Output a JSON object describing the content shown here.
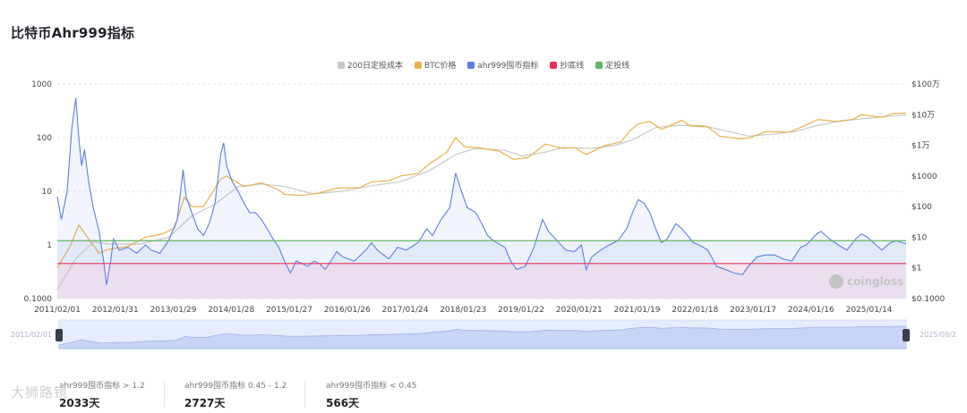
{
  "page": {
    "title": "比特币Ahr999指标"
  },
  "watermark": {
    "logo_text": "coingloss",
    "corner_text": "大狮路镜"
  },
  "legend": [
    {
      "label": "200日定投成本",
      "color": "#c8c8c8"
    },
    {
      "label": "BTC价格",
      "color": "#e8b14a"
    },
    {
      "label": "ahr999囤币指标",
      "color": "#5b7fe0"
    },
    {
      "label": "抄底线",
      "color": "#e8305a"
    },
    {
      "label": "定投线",
      "color": "#5fb85f"
    }
  ],
  "navigator": {
    "start_label": "2011/02/01",
    "end_label": "2025/09/2"
  },
  "stats": [
    {
      "label": "ahr999囤币指标 > 1.2",
      "value": "2033天"
    },
    {
      "label": "ahr999囤币指标 0.45 - 1.2",
      "value": "2727天"
    },
    {
      "label": "ahr999囤币指标 < 0.45",
      "value": "566天"
    }
  ],
  "chart_data": {
    "type": "line",
    "title": "比特币Ahr999指标",
    "x_ticks": [
      "2011/02/01",
      "2012/01/31",
      "2013/01/29",
      "2014/01/28",
      "2015/01/27",
      "2016/01/26",
      "2017/01/24",
      "2018/01/23",
      "2019/01/22",
      "2020/01/21",
      "2021/01/19",
      "2022/01/18",
      "2023/01/17",
      "2024/01/16",
      "2025/01/14"
    ],
    "y_left_ticks": [
      "1000",
      "100",
      "10",
      "1",
      "0.1000"
    ],
    "y_left_scale": "log",
    "y_left_range": [
      0.1,
      1000
    ],
    "y_right_ticks": [
      "$100万",
      "$10万",
      "$1万",
      "$1000",
      "$100",
      "$10",
      "$1",
      "$0.1000"
    ],
    "y_right_scale": "log",
    "y_right_range": [
      0.1,
      1000000
    ],
    "grid": true,
    "legend_position": "top-center",
    "lines": {
      "buy_bottom": 0.45,
      "dca": 1.2
    },
    "x_range": [
      2011.08,
      2025.72
    ],
    "series": [
      {
        "name": "ahr999囤币指标",
        "axis": "left",
        "color": "#5b7fe0",
        "points": [
          [
            2011.08,
            8
          ],
          [
            2011.15,
            3
          ],
          [
            2011.25,
            10
          ],
          [
            2011.33,
            150
          ],
          [
            2011.4,
            550
          ],
          [
            2011.45,
            100
          ],
          [
            2011.5,
            30
          ],
          [
            2011.55,
            60
          ],
          [
            2011.62,
            15
          ],
          [
            2011.7,
            5
          ],
          [
            2011.8,
            1.8
          ],
          [
            2011.88,
            0.5
          ],
          [
            2011.93,
            0.18
          ],
          [
            2012.0,
            0.5
          ],
          [
            2012.05,
            1.3
          ],
          [
            2012.15,
            0.8
          ],
          [
            2012.3,
            0.9
          ],
          [
            2012.45,
            0.7
          ],
          [
            2012.6,
            1.0
          ],
          [
            2012.7,
            0.8
          ],
          [
            2012.85,
            0.7
          ],
          [
            2013.0,
            1.2
          ],
          [
            2013.15,
            3
          ],
          [
            2013.25,
            25
          ],
          [
            2013.3,
            8
          ],
          [
            2013.4,
            4
          ],
          [
            2013.5,
            2
          ],
          [
            2013.6,
            1.5
          ],
          [
            2013.7,
            2.5
          ],
          [
            2013.8,
            6
          ],
          [
            2013.9,
            50
          ],
          [
            2013.95,
            80
          ],
          [
            2014.0,
            30
          ],
          [
            2014.1,
            15
          ],
          [
            2014.2,
            10
          ],
          [
            2014.3,
            6
          ],
          [
            2014.4,
            4
          ],
          [
            2014.5,
            4
          ],
          [
            2014.6,
            3
          ],
          [
            2014.7,
            2
          ],
          [
            2014.8,
            1.3
          ],
          [
            2014.9,
            0.9
          ],
          [
            2015.0,
            0.5
          ],
          [
            2015.1,
            0.3
          ],
          [
            2015.2,
            0.5
          ],
          [
            2015.3,
            0.45
          ],
          [
            2015.4,
            0.4
          ],
          [
            2015.5,
            0.5
          ],
          [
            2015.6,
            0.45
          ],
          [
            2015.7,
            0.35
          ],
          [
            2015.8,
            0.5
          ],
          [
            2015.9,
            0.75
          ],
          [
            2016.0,
            0.6
          ],
          [
            2016.2,
            0.5
          ],
          [
            2016.4,
            0.8
          ],
          [
            2016.5,
            1.1
          ],
          [
            2016.6,
            0.8
          ],
          [
            2016.8,
            0.55
          ],
          [
            2016.95,
            0.9
          ],
          [
            2017.1,
            0.8
          ],
          [
            2017.3,
            1.1
          ],
          [
            2017.45,
            2
          ],
          [
            2017.55,
            1.5
          ],
          [
            2017.7,
            3
          ],
          [
            2017.85,
            5
          ],
          [
            2017.95,
            22
          ],
          [
            2018.05,
            10
          ],
          [
            2018.15,
            5
          ],
          [
            2018.3,
            4
          ],
          [
            2018.4,
            2.5
          ],
          [
            2018.5,
            1.5
          ],
          [
            2018.6,
            1.2
          ],
          [
            2018.8,
            0.9
          ],
          [
            2018.9,
            0.5
          ],
          [
            2019.0,
            0.35
          ],
          [
            2019.15,
            0.4
          ],
          [
            2019.3,
            0.9
          ],
          [
            2019.45,
            3
          ],
          [
            2019.55,
            1.8
          ],
          [
            2019.7,
            1.2
          ],
          [
            2019.85,
            0.8
          ],
          [
            2020.0,
            0.75
          ],
          [
            2020.12,
            1.0
          ],
          [
            2020.2,
            0.35
          ],
          [
            2020.3,
            0.6
          ],
          [
            2020.45,
            0.8
          ],
          [
            2020.6,
            1.0
          ],
          [
            2020.75,
            1.2
          ],
          [
            2020.9,
            2
          ],
          [
            2021.0,
            4
          ],
          [
            2021.1,
            7
          ],
          [
            2021.2,
            6
          ],
          [
            2021.3,
            4
          ],
          [
            2021.4,
            2
          ],
          [
            2021.5,
            1.1
          ],
          [
            2021.6,
            1.3
          ],
          [
            2021.75,
            2.5
          ],
          [
            2021.85,
            2
          ],
          [
            2021.95,
            1.5
          ],
          [
            2022.05,
            1.1
          ],
          [
            2022.15,
            1.0
          ],
          [
            2022.3,
            0.8
          ],
          [
            2022.45,
            0.4
          ],
          [
            2022.6,
            0.35
          ],
          [
            2022.75,
            0.3
          ],
          [
            2022.9,
            0.28
          ],
          [
            2023.0,
            0.4
          ],
          [
            2023.15,
            0.6
          ],
          [
            2023.3,
            0.65
          ],
          [
            2023.45,
            0.65
          ],
          [
            2023.6,
            0.55
          ],
          [
            2023.75,
            0.5
          ],
          [
            2023.9,
            0.9
          ],
          [
            2024.0,
            1.0
          ],
          [
            2024.15,
            1.5
          ],
          [
            2024.25,
            1.8
          ],
          [
            2024.4,
            1.3
          ],
          [
            2024.55,
            1.0
          ],
          [
            2024.7,
            0.8
          ],
          [
            2024.85,
            1.3
          ],
          [
            2024.95,
            1.6
          ],
          [
            2025.05,
            1.4
          ],
          [
            2025.2,
            1.0
          ],
          [
            2025.3,
            0.8
          ],
          [
            2025.45,
            1.1
          ],
          [
            2025.55,
            1.2
          ],
          [
            2025.65,
            1.1
          ],
          [
            2025.72,
            1.05
          ]
        ]
      },
      {
        "name": "BTC价格",
        "axis": "right",
        "color": "#e8b14a",
        "points": [
          [
            2011.08,
            1
          ],
          [
            2011.3,
            5
          ],
          [
            2011.45,
            25
          ],
          [
            2011.6,
            10
          ],
          [
            2011.8,
            3
          ],
          [
            2011.95,
            4
          ],
          [
            2012.3,
            5
          ],
          [
            2012.6,
            10
          ],
          [
            2012.9,
            13
          ],
          [
            2013.1,
            20
          ],
          [
            2013.27,
            200
          ],
          [
            2013.4,
            100
          ],
          [
            2013.6,
            100
          ],
          [
            2013.9,
            800
          ],
          [
            2014.0,
            1000
          ],
          [
            2014.3,
            450
          ],
          [
            2014.6,
            600
          ],
          [
            2014.9,
            350
          ],
          [
            2015.0,
            250
          ],
          [
            2015.3,
            230
          ],
          [
            2015.6,
            280
          ],
          [
            2015.9,
            400
          ],
          [
            2016.3,
            420
          ],
          [
            2016.5,
            650
          ],
          [
            2016.8,
            700
          ],
          [
            2017.0,
            1000
          ],
          [
            2017.3,
            1200
          ],
          [
            2017.5,
            2500
          ],
          [
            2017.8,
            6000
          ],
          [
            2017.95,
            18000
          ],
          [
            2018.1,
            9000
          ],
          [
            2018.4,
            8000
          ],
          [
            2018.7,
            6500
          ],
          [
            2018.95,
            3500
          ],
          [
            2019.2,
            4000
          ],
          [
            2019.5,
            11000
          ],
          [
            2019.8,
            8000
          ],
          [
            2020.0,
            8500
          ],
          [
            2020.2,
            5000
          ],
          [
            2020.5,
            9500
          ],
          [
            2020.8,
            13000
          ],
          [
            2020.95,
            29000
          ],
          [
            2021.1,
            50000
          ],
          [
            2021.3,
            60000
          ],
          [
            2021.5,
            33000
          ],
          [
            2021.85,
            65000
          ],
          [
            2022.0,
            43000
          ],
          [
            2022.3,
            40000
          ],
          [
            2022.5,
            20000
          ],
          [
            2022.85,
            16500
          ],
          [
            2023.0,
            17000
          ],
          [
            2023.3,
            28000
          ],
          [
            2023.7,
            27000
          ],
          [
            2023.95,
            42000
          ],
          [
            2024.2,
            70000
          ],
          [
            2024.5,
            60000
          ],
          [
            2024.8,
            70000
          ],
          [
            2024.95,
            100000
          ],
          [
            2025.3,
            82000
          ],
          [
            2025.5,
            108000
          ],
          [
            2025.72,
            112000
          ]
        ]
      },
      {
        "name": "200日定投成本",
        "axis": "right",
        "color": "#c8c8c8",
        "points": [
          [
            2011.08,
            0.2
          ],
          [
            2011.4,
            2
          ],
          [
            2011.7,
            7
          ],
          [
            2012.0,
            6
          ],
          [
            2012.5,
            6
          ],
          [
            2013.0,
            10
          ],
          [
            2013.4,
            50
          ],
          [
            2013.8,
            120
          ],
          [
            2014.2,
            450
          ],
          [
            2014.6,
            550
          ],
          [
            2015.0,
            450
          ],
          [
            2015.5,
            260
          ],
          [
            2016.0,
            320
          ],
          [
            2016.5,
            480
          ],
          [
            2017.0,
            650
          ],
          [
            2017.5,
            1500
          ],
          [
            2017.95,
            5000
          ],
          [
            2018.3,
            8000
          ],
          [
            2018.8,
            6800
          ],
          [
            2019.1,
            4500
          ],
          [
            2019.5,
            6000
          ],
          [
            2019.8,
            8500
          ],
          [
            2020.3,
            8000
          ],
          [
            2020.7,
            10000
          ],
          [
            2021.0,
            15000
          ],
          [
            2021.4,
            38000
          ],
          [
            2021.8,
            45000
          ],
          [
            2022.2,
            44000
          ],
          [
            2022.6,
            30000
          ],
          [
            2023.0,
            20000
          ],
          [
            2023.4,
            23000
          ],
          [
            2023.8,
            28000
          ],
          [
            2024.2,
            45000
          ],
          [
            2024.6,
            62000
          ],
          [
            2025.0,
            75000
          ],
          [
            2025.4,
            88000
          ],
          [
            2025.72,
            97000
          ]
        ]
      }
    ]
  }
}
